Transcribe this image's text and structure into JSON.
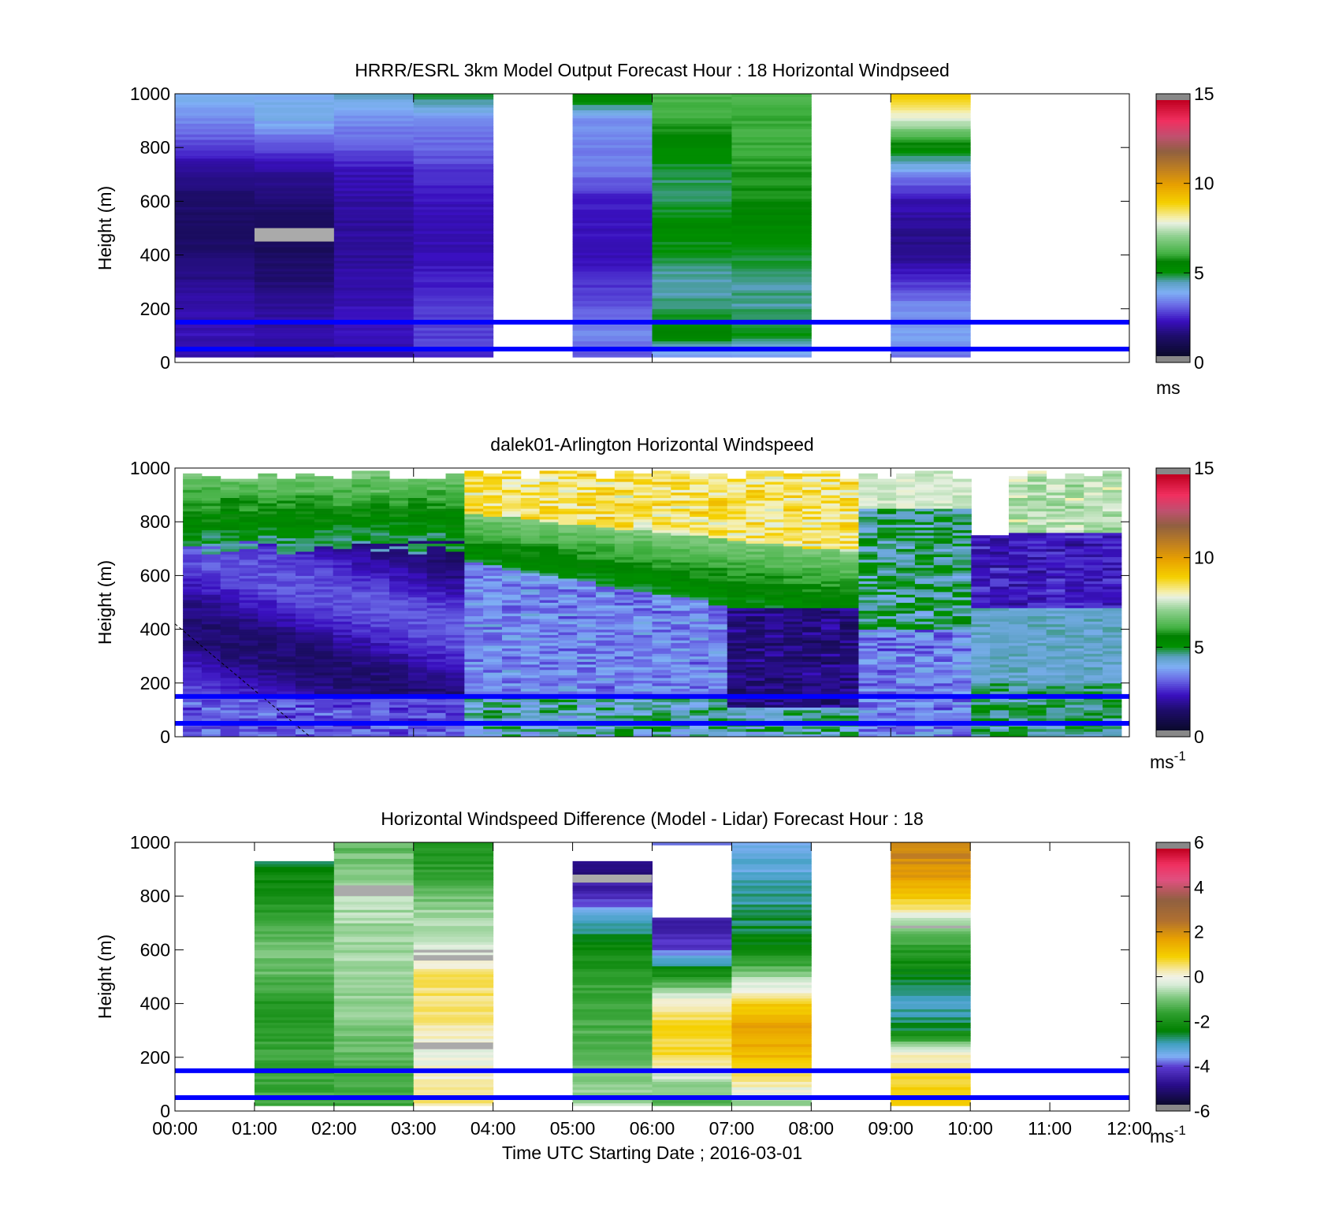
{
  "chart_data": [
    {
      "type": "heatmap",
      "title": "HRRR/ESRL 3km Model Output   Forecast Hour : 18 Horizontal Windpseed",
      "ylabel": "Height (m)",
      "xlabel": "",
      "ylim": [
        0,
        1000
      ],
      "yticks": [
        "0",
        "200",
        "400",
        "600",
        "800",
        "1000"
      ],
      "xlim": [
        0,
        12
      ],
      "colorbar": {
        "min": 0,
        "max": 15,
        "ticks": [
          "0",
          "5",
          "10",
          "15"
        ],
        "unit": "ms",
        "unit_sup": "",
        "colormap": "wind"
      },
      "reference_lines_m": [
        50,
        150
      ],
      "bins": [
        {
          "hour": 0,
          "profile": [
            1.8,
            2.0,
            1.9,
            1.5,
            1.2,
            1.0,
            1.2,
            1.5,
            2.6,
            3.4,
            4.0
          ],
          "bottom": 20,
          "top": 1000
        },
        {
          "hour": 1,
          "profile": [
            1.7,
            1.8,
            1.7,
            1.3,
            1.0,
            0.8,
            1.3,
            1.6,
            2.8,
            3.8,
            3.8
          ],
          "bottom": 20,
          "top": 1000
        },
        {
          "hour": 2,
          "profile": [
            1.9,
            2.0,
            2.0,
            1.8,
            1.7,
            1.7,
            1.8,
            2.0,
            2.9,
            3.4,
            4.2
          ],
          "bottom": 20,
          "top": 1000
        },
        {
          "hour": 3,
          "profile": [
            2.4,
            2.6,
            2.5,
            2.2,
            2.0,
            1.9,
            2.1,
            2.4,
            3.0,
            3.3,
            5.0
          ],
          "bottom": 20,
          "top": 1000
        },
        {
          "hour": 5,
          "profile": [
            2.6,
            3.4,
            2.8,
            2.4,
            2.0,
            2.1,
            2.2,
            3.1,
            3.3,
            3.4,
            5.8
          ],
          "bottom": 20,
          "top": 1000
        },
        {
          "hour": 6,
          "profile": [
            3.0,
            5.4,
            4.5,
            4.4,
            4.8,
            5.2,
            4.6,
            4.7,
            5.2,
            6.0,
            6.2
          ],
          "bottom": 20,
          "top": 1000
        },
        {
          "hour": 7,
          "profile": [
            3.2,
            5.0,
            4.5,
            4.5,
            4.8,
            5.2,
            5.6,
            5.8,
            6.0,
            6.0,
            6.2
          ],
          "bottom": 20,
          "top": 1000
        },
        {
          "hour": 9,
          "profile": [
            3.0,
            3.6,
            3.4,
            2.4,
            1.5,
            1.6,
            2.0,
            3.4,
            5.5,
            7.6,
            9.4
          ],
          "bottom": 20,
          "top": 1000
        }
      ],
      "missing_patches": [
        {
          "hour": 1,
          "from": 450,
          "to": 500
        }
      ]
    },
    {
      "type": "heatmap",
      "title": "dalek01-Arlington  Horizontal Windspeed",
      "ylabel": "Height (m)",
      "xlabel": "",
      "ylim": [
        0,
        1000
      ],
      "yticks": [
        "0",
        "200",
        "400",
        "600",
        "800",
        "1000"
      ],
      "xlim": [
        0,
        12
      ],
      "colorbar": {
        "min": 0,
        "max": 15,
        "ticks": [
          "0",
          "5",
          "10",
          "15"
        ],
        "unit": "ms",
        "unit_sup": "-1",
        "colormap": "wind"
      },
      "reference_lines_m": [
        50,
        150
      ],
      "data_range_hours": [
        0.1,
        11.9
      ],
      "columns": 50,
      "top_of_data_m": 990,
      "description_only": false
    },
    {
      "type": "heatmap",
      "title": "Horizontal Windspeed Difference (Model - Lidar) Forecast Hour : 18",
      "ylabel": "Height (m)",
      "xlabel": "Time UTC  Starting Date ; 2016-03-01",
      "ylim": [
        0,
        1000
      ],
      "yticks": [
        "0",
        "200",
        "400",
        "600",
        "800",
        "1000"
      ],
      "xlim": [
        0,
        12
      ],
      "xticks": [
        "00:00",
        "01:00",
        "02:00",
        "03:00",
        "04:00",
        "05:00",
        "06:00",
        "07:00",
        "08:00",
        "09:00",
        "10:00",
        "11:00",
        "12:00"
      ],
      "colorbar": {
        "min": -6,
        "max": 6,
        "ticks": [
          "-6",
          "-4",
          "-2",
          "0",
          "2",
          "4",
          "6"
        ],
        "unit": "ms",
        "unit_sup": "-1",
        "colormap": "diff"
      },
      "reference_lines_m": [
        50,
        150
      ],
      "bins": [
        {
          "hour": 1,
          "profile": [
            -1.5,
            -1.6,
            -1.6,
            -1.8,
            -2.0,
            -1.2,
            -1.0,
            -1.5,
            -2.2,
            -2.4,
            -3.5
          ],
          "bottom": 20,
          "top": 930
        },
        {
          "hour": 2,
          "profile": [
            -1.6,
            -1.5,
            -1.3,
            -1.0,
            -0.9,
            -0.8,
            -0.7,
            -0.7,
            -0.6,
            -0.9,
            -1.3
          ],
          "bottom": 20,
          "top": 1000
        },
        {
          "hour": 3,
          "profile": [
            0.5,
            0.3,
            -0.2,
            0.3,
            0.6,
            0.5,
            -0.4,
            -0.6,
            -1.2,
            -1.8,
            -2.0
          ],
          "bottom": 20,
          "top": 1000
        },
        {
          "hour": 5,
          "profile": [
            -0.5,
            -0.9,
            -1.2,
            -1.4,
            -1.5,
            -1.8,
            -2.2,
            -3.3,
            -4.5,
            -5.2,
            -5.5
          ],
          "bottom": 20,
          "top": 930
        },
        {
          "hour": 6,
          "profile": [
            -1.5,
            -0.8,
            0.8,
            0.8,
            0.2,
            -2.0,
            -4.2,
            -4.8,
            -4.8,
            -4.8,
            -3.8
          ],
          "bottom": 20,
          "top": 1000,
          "gap": [
            720,
            985
          ]
        },
        {
          "hour": 7,
          "profile": [
            -1.2,
            0.3,
            1.3,
            1.8,
            0.9,
            -0.9,
            -2.3,
            -2.8,
            -3.0,
            -3.4,
            -3.6
          ],
          "bottom": 20,
          "top": 1000
        },
        {
          "hour": 9,
          "profile": [
            1.2,
            0.9,
            0.2,
            -2.6,
            -3.2,
            -2.5,
            -1.8,
            -0.6,
            1.3,
            2.0,
            2.4
          ],
          "bottom": 20,
          "top": 1000
        }
      ],
      "missing_patches": [
        {
          "hour": 2,
          "from": 800,
          "to": 840
        },
        {
          "hour": 3,
          "from": 230,
          "to": 255
        },
        {
          "hour": 3,
          "from": 560,
          "to": 580
        },
        {
          "hour": 3,
          "from": 590,
          "to": 600
        },
        {
          "hour": 5,
          "from": 850,
          "to": 880
        },
        {
          "hour": 9,
          "from": 680,
          "to": 690
        }
      ]
    }
  ]
}
